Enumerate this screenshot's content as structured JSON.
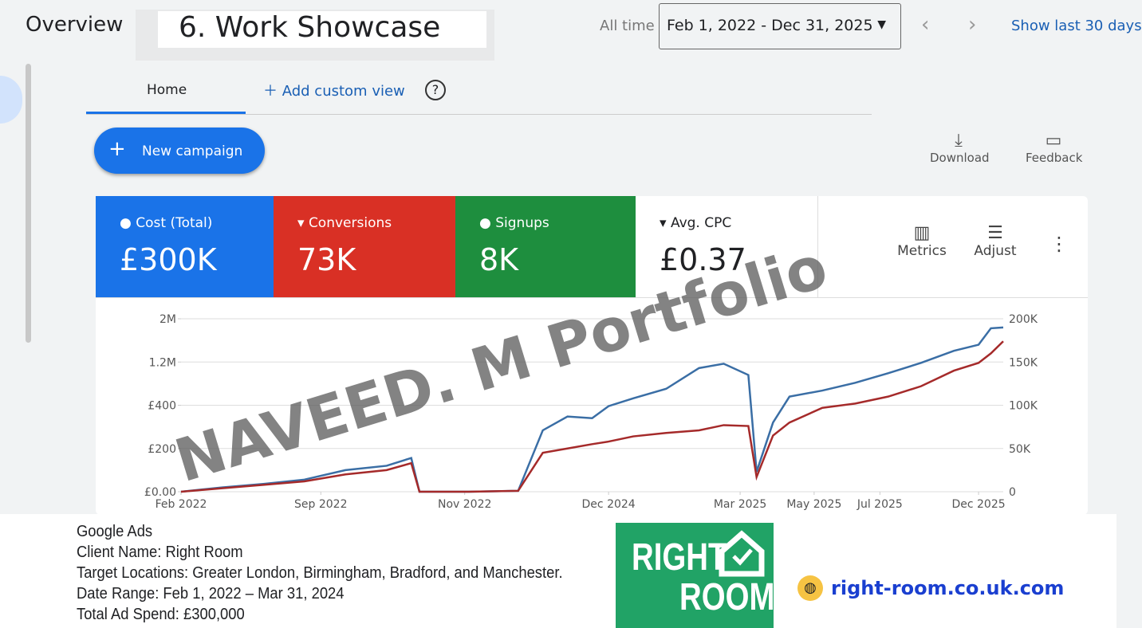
{
  "header": {
    "menu_title": "Overview",
    "banner": "6. Work Showcase",
    "range_label": "All time",
    "date_range": "Feb 1, 2022 - Dec 31, 2025",
    "show_last": "Show last 30 days"
  },
  "tabs": [
    "Home",
    "Add custom view"
  ],
  "actions": {
    "new_campaign": "New campaign",
    "download": "Download",
    "feedback": "Feedback"
  },
  "scorecards": [
    {
      "label": "Cost (Total)",
      "value": "£300K"
    },
    {
      "label": "Conversions",
      "value": "73K"
    },
    {
      "label": "Signups",
      "value": "8K"
    },
    {
      "label": "Avg. CPC",
      "value": "£0.37"
    }
  ],
  "tools": [
    "Metrics",
    "Adjust"
  ],
  "chart_data": {
    "type": "line",
    "xlim": [
      0,
      100
    ],
    "xticks": [
      {
        "value": 0,
        "label": "Feb 2022"
      },
      {
        "value": 17,
        "label": "Sep 2022"
      },
      {
        "value": 34.5,
        "label": "Nov 2022"
      },
      {
        "value": 52,
        "label": "Dec 2024"
      },
      {
        "value": 68,
        "label": "Mar 2025"
      },
      {
        "value": 77,
        "label": "May 2025"
      },
      {
        "value": 85,
        "label": "Jul 2025"
      },
      {
        "value": 97,
        "label": "Dec 2025"
      }
    ],
    "yticks": [
      {
        "value": 0,
        "label": "£0.00"
      },
      {
        "value": 200,
        "label": "£200"
      },
      {
        "value": 400,
        "label": "£400"
      },
      {
        "value": 1200000,
        "label": "1.2M"
      },
      {
        "value": 2000000,
        "label": "2M"
      }
    ],
    "y2lim": [
      0,
      200000
    ],
    "y2ticks": [
      0,
      {
        "value": 50000,
        "label": "50K"
      },
      {
        "value": 100000,
        "label": "100K"
      },
      {
        "value": 150000,
        "label": "150K"
      },
      {
        "value": 200000,
        "label": "200K"
      }
    ],
    "grid": true,
    "x": [
      0,
      5,
      10,
      15,
      20,
      25,
      28,
      29,
      35,
      41,
      44,
      47,
      50,
      52,
      55,
      59,
      63,
      66,
      69,
      70,
      72,
      74,
      78,
      82,
      86,
      90,
      94,
      97,
      98.5,
      100
    ],
    "series": [
      {
        "color": "#3a6ea5",
        "axis": "y2",
        "values": [
          0,
          5000,
          9000,
          14000,
          25000,
          30000,
          39000,
          0,
          0,
          1000,
          71000,
          87000,
          85000,
          99000,
          108000,
          119000,
          143000,
          148000,
          135000,
          23000,
          80000,
          110000,
          117000,
          126000,
          137000,
          149000,
          163000,
          170000,
          189000,
          190000
        ]
      },
      {
        "color": "#a52a2a",
        "axis": "y2",
        "values": [
          0,
          4000,
          8000,
          12000,
          20000,
          25000,
          33000,
          0,
          0,
          1000,
          45000,
          50000,
          55000,
          58000,
          64000,
          68000,
          71000,
          77000,
          76000,
          17000,
          65000,
          80000,
          97000,
          102000,
          110000,
          122000,
          140000,
          149000,
          160000,
          174000
        ]
      }
    ]
  },
  "watermark": "NAVEED. M Portfolio",
  "footer": {
    "lines": [
      "Google Ads",
      "Client Name: Right Room",
      "Target Locations: Greater London, Birmingham, Bradford, and Manchester.",
      "Date Range: Feb 1, 2022 – Mar 31, 2024",
      "Total Ad Spend: £300,000"
    ],
    "logo": [
      "RIGHT",
      "ROOM"
    ],
    "url": "right-room.co.uk.com"
  }
}
